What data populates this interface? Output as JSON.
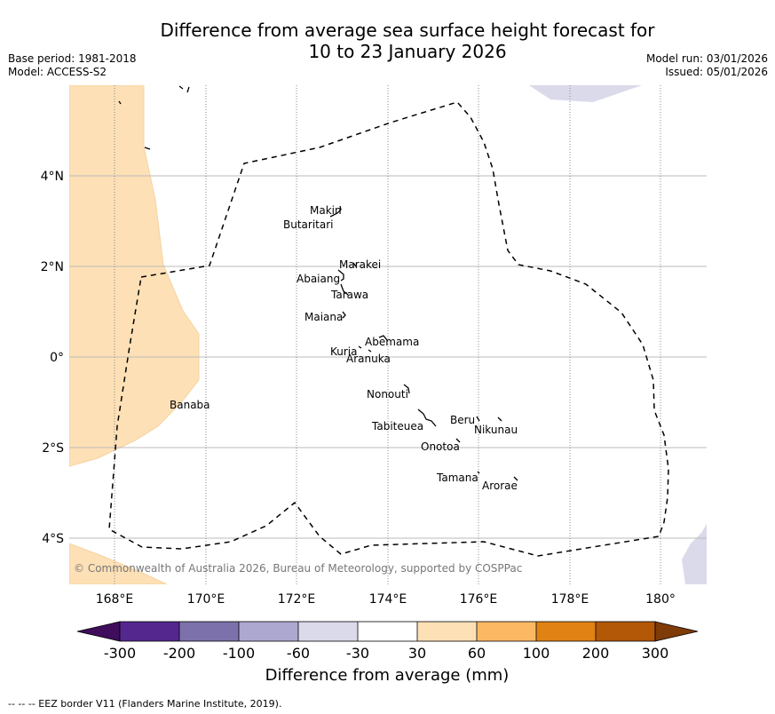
{
  "title_line1": "Difference from average sea surface height forecast for",
  "title_line2": "10 to 23 January 2026",
  "base_period": "Base period: 1981-2018",
  "model": "Model: ACCESS-S2",
  "model_run": "Model run: 03/01/2026",
  "issued": "Issued: 05/01/2026",
  "map": {
    "lon_range": [
      167,
      181
    ],
    "lat_range": [
      -5,
      6
    ],
    "lon_ticks": [
      "168°E",
      "170°E",
      "172°E",
      "174°E",
      "176°E",
      "178°E",
      "180°"
    ],
    "lat_ticks": [
      "4°N",
      "2°N",
      "0°",
      "2°S",
      "4°S"
    ],
    "places": [
      "Makin",
      "Butaritari",
      "Marakei",
      "Abaiang",
      "Tarawa",
      "Maiana",
      "Abemama",
      "Kuria",
      "Aranuka",
      "Banaba",
      "Nonouti",
      "Tabiteuea",
      "Beru",
      "Nikunau",
      "Onotoa",
      "Tamana",
      "Arorae"
    ],
    "copyright": "© Commonwealth of Australia 2026, Bureau of Meteorology, supported by COSPPac"
  },
  "colorbar": {
    "title": "Difference from average (mm)",
    "labels": [
      "-300",
      "-200",
      "-100",
      "-60",
      "-30",
      "30",
      "60",
      "100",
      "200",
      "300"
    ],
    "colors": [
      "#3f0d5b",
      "#54278f",
      "#7d71ab",
      "#ada8d0",
      "#dadaeb",
      "#ffffff",
      "#fee0b6",
      "#fdb863",
      "#e08214",
      "#b35806",
      "#7f3b08"
    ]
  },
  "footer": "--  --  -- EEZ border V11 (Flanders Marine Institute, 2019)."
}
